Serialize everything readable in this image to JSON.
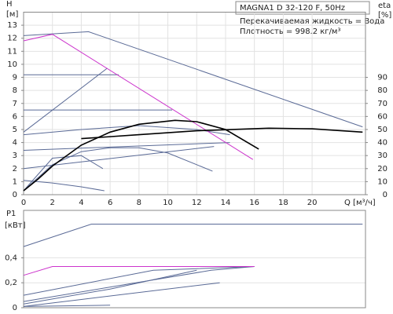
{
  "chart_data": [
    {
      "type": "line",
      "title": "MAGNA1 D 32-120 F, 50Hz",
      "annotations": [
        "Перекачиваемая жидкость = Вода",
        "Плотность = 998.2 кг/м³"
      ],
      "ylabel": "H",
      "yunit": "[м]",
      "y2label": "eta",
      "y2unit": "[%]",
      "xlabel": "Q [м³/ч]",
      "xlim": [
        0,
        23.7
      ],
      "xticks": [
        0,
        2,
        4,
        6,
        8,
        10,
        12,
        14,
        16,
        18,
        20
      ],
      "ylim": [
        0,
        14
      ],
      "yticks": [
        0,
        1,
        2,
        3,
        4,
        5,
        6,
        7,
        8,
        9,
        10,
        11,
        12,
        13
      ],
      "y2lim": [
        0,
        140
      ],
      "y2ticks": [
        0,
        10,
        20,
        30,
        40,
        50,
        60,
        70,
        80,
        90
      ],
      "grid": true,
      "series": [
        {
          "color": "#5a6a96",
          "x": [
            0,
            4.5,
            23.5
          ],
          "values": [
            12.2,
            12.5,
            5.2
          ]
        },
        {
          "color": "#5a6a96",
          "x": [
            0,
            6.6
          ],
          "values": [
            9.2,
            9.2
          ]
        },
        {
          "color": "#5a6a96",
          "x": [
            0,
            5.8
          ],
          "values": [
            4.8,
            9.7
          ]
        },
        {
          "color": "#5a6a96",
          "x": [
            0,
            10.3
          ],
          "values": [
            6.5,
            6.5
          ]
        },
        {
          "color": "#5a6a96",
          "x": [
            0,
            4,
            8,
            12,
            14.3
          ],
          "values": [
            4.6,
            5.0,
            5.3,
            5.0,
            4.6
          ]
        },
        {
          "color": "#5a6a96",
          "x": [
            0,
            14.3
          ],
          "values": [
            3.4,
            4.0
          ]
        },
        {
          "color": "#5a6a96",
          "x": [
            0,
            13.2
          ],
          "values": [
            2.0,
            3.7
          ]
        },
        {
          "color": "#5a6a96",
          "x": [
            0,
            2,
            4,
            6,
            8,
            10,
            12,
            13.1
          ],
          "values": [
            0.3,
            2.3,
            3.3,
            3.6,
            3.6,
            3.2,
            2.3,
            1.8
          ]
        },
        {
          "color": "#5a6a96",
          "x": [
            0,
            2,
            4,
            5.5
          ],
          "values": [
            0.3,
            2.8,
            3.0,
            2.0
          ]
        },
        {
          "color": "#5a6a96",
          "x": [
            0,
            2,
            4,
            5.6
          ],
          "values": [
            1.1,
            0.9,
            0.6,
            0.3
          ]
        },
        {
          "color": "#cc33cc",
          "x": [
            0,
            2,
            15.9
          ],
          "values": [
            11.8,
            12.3,
            2.7
          ]
        },
        {
          "color": "#000000",
          "axis": "y2",
          "x": [
            0,
            1,
            2,
            4,
            6,
            8,
            10.5,
            12,
            14,
            16.3
          ],
          "values": [
            3,
            12,
            22,
            38,
            48,
            54,
            57,
            56,
            50,
            35
          ]
        },
        {
          "color": "#000000",
          "axis": "y2",
          "x": [
            4,
            8,
            12,
            17,
            20,
            23.5
          ],
          "values": [
            43,
            46,
            49,
            51,
            50.5,
            48
          ]
        }
      ]
    },
    {
      "type": "line",
      "ylabel": "P1",
      "yunit": "[кВт]",
      "xlim": [
        0,
        23.7
      ],
      "ylim": [
        0,
        0.78
      ],
      "yticks": [
        0,
        {
          "value": 0.2,
          "label": "0,2"
        },
        {
          "value": 0.4,
          "label": "0,4"
        }
      ],
      "grid": true,
      "series": [
        {
          "color": "#5a6a96",
          "x": [
            0,
            4.7,
            23.5
          ],
          "values": [
            0.49,
            0.67,
            0.67
          ]
        },
        {
          "color": "#5a6a96",
          "x": [
            0,
            13,
            16
          ],
          "values": [
            0.05,
            0.3,
            0.33
          ]
        },
        {
          "color": "#5a6a96",
          "x": [
            0,
            9,
            16
          ],
          "values": [
            0.1,
            0.3,
            0.33
          ]
        },
        {
          "color": "#5a6a96",
          "x": [
            0,
            6,
            12
          ],
          "values": [
            0.03,
            0.15,
            0.3
          ]
        },
        {
          "color": "#5a6a96",
          "x": [
            0,
            13.6
          ],
          "values": [
            0.01,
            0.2
          ]
        },
        {
          "color": "#5a6a96",
          "x": [
            0,
            6
          ],
          "values": [
            0.01,
            0.02
          ]
        },
        {
          "color": "#cc33cc",
          "x": [
            0,
            2,
            16
          ],
          "values": [
            0.26,
            0.33,
            0.33
          ]
        }
      ]
    }
  ]
}
